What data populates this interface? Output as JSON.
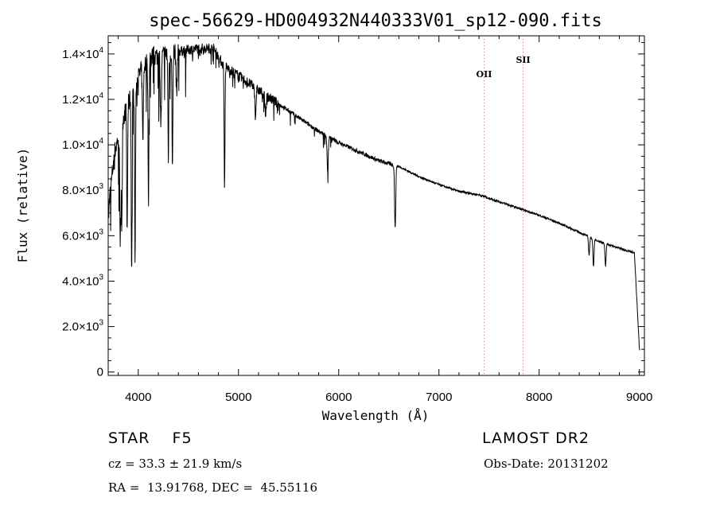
{
  "chart_data": {
    "type": "line",
    "title": "spec-56629-HD004932N440333V01_sp12-090.fits",
    "xlabel": "Wavelength (Å)",
    "ylabel": "Flux (relative)",
    "xlim": [
      3700,
      9050
    ],
    "ylim": [
      -150,
      14800
    ],
    "x_ticks": [
      4000,
      5000,
      6000,
      7000,
      8000,
      9000
    ],
    "x_tick_labels": [
      "4000",
      "5000",
      "6000",
      "7000",
      "8000",
      "9000"
    ],
    "y_ticks": [
      {
        "value": 0,
        "mantissa": "0",
        "exponent": ""
      },
      {
        "value": 2000,
        "mantissa": "2.0×10",
        "exponent": "3"
      },
      {
        "value": 4000,
        "mantissa": "4.0×10",
        "exponent": "3"
      },
      {
        "value": 6000,
        "mantissa": "6.0×10",
        "exponent": "3"
      },
      {
        "value": 8000,
        "mantissa": "8.0×10",
        "exponent": "3"
      },
      {
        "value": 10000,
        "mantissa": "1.0×10",
        "exponent": "4"
      },
      {
        "value": 12000,
        "mantissa": "1.2×10",
        "exponent": "4"
      },
      {
        "value": 14000,
        "mantissa": "1.4×10",
        "exponent": "4"
      }
    ],
    "continuum": [
      [
        3700,
        7000
      ],
      [
        3760,
        9600
      ],
      [
        3850,
        11200
      ],
      [
        3950,
        12400
      ],
      [
        4050,
        13500
      ],
      [
        4150,
        13900
      ],
      [
        4300,
        14000
      ],
      [
        4450,
        14150
      ],
      [
        4600,
        14250
      ],
      [
        4750,
        14250
      ],
      [
        4850,
        13500
      ],
      [
        5000,
        13050
      ],
      [
        5200,
        12400
      ],
      [
        5400,
        11800
      ],
      [
        5600,
        11200
      ],
      [
        5800,
        10600
      ],
      [
        6000,
        10100
      ],
      [
        6200,
        9700
      ],
      [
        6400,
        9300
      ],
      [
        6600,
        9050
      ],
      [
        6800,
        8600
      ],
      [
        7000,
        8250
      ],
      [
        7200,
        7950
      ],
      [
        7400,
        7800
      ],
      [
        7600,
        7500
      ],
      [
        7800,
        7200
      ],
      [
        8000,
        6900
      ],
      [
        8200,
        6550
      ],
      [
        8400,
        6150
      ],
      [
        8600,
        5750
      ],
      [
        8800,
        5450
      ],
      [
        8950,
        5250
      ],
      [
        9000,
        1000
      ]
    ],
    "absorption_lines": [
      {
        "x": 3820,
        "depth": 5500
      },
      {
        "x": 3835,
        "depth": 4500
      },
      {
        "x": 3889,
        "depth": 5500
      },
      {
        "x": 3934,
        "depth": 8000
      },
      {
        "x": 3968,
        "depth": 7800
      },
      {
        "x": 4046,
        "depth": 3000
      },
      {
        "x": 4102,
        "depth": 6500
      },
      {
        "x": 4226,
        "depth": 3000
      },
      {
        "x": 4300,
        "depth": 4500
      },
      {
        "x": 4341,
        "depth": 5200
      },
      {
        "x": 4383,
        "depth": 1800
      },
      {
        "x": 4861,
        "depth": 5300
      },
      {
        "x": 5170,
        "depth": 1200
      },
      {
        "x": 5270,
        "depth": 900
      },
      {
        "x": 5890,
        "depth": 1600
      },
      {
        "x": 6563,
        "depth": 2800
      },
      {
        "x": 8498,
        "depth": 800
      },
      {
        "x": 8542,
        "depth": 1200
      },
      {
        "x": 8662,
        "depth": 1000
      }
    ],
    "reference_lines": [
      {
        "label": "OII",
        "x": 7450,
        "color": "#ff4d4d"
      },
      {
        "label": "SII",
        "x": 7840,
        "color": "#ff4d4d"
      }
    ],
    "grid": false,
    "line_color": "#000000"
  },
  "info": {
    "object": "STAR    F5",
    "survey": "LAMOST DR2",
    "redshift": "cz = 33.3 ± 21.9 km/s",
    "obs_date": "Obs-Date: 20131202",
    "coords": "RA =  13.91768, DEC =  45.55116"
  }
}
